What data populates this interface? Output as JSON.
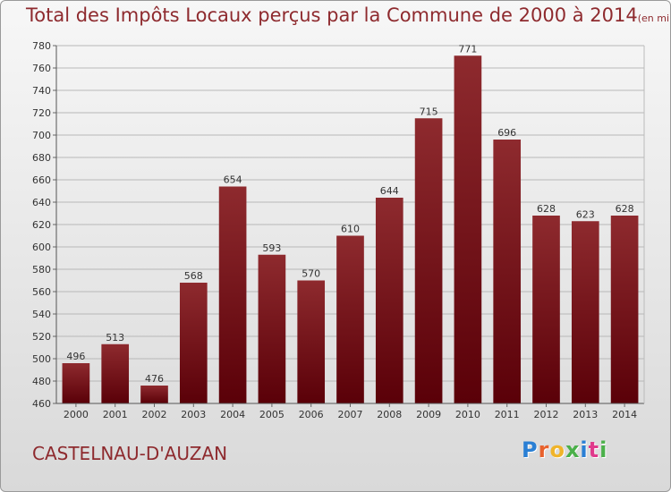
{
  "header": {
    "title": "Total des Impôts Locaux perçus par la Commune de 2000 à 2014",
    "subtitle": "(en milliers d'€)"
  },
  "commune_name": "CASTELNAU-D'AUZAN",
  "logo": {
    "text": "Proxiti",
    "colors": [
      "#2a7fd4",
      "#e8612c",
      "#f0b42a",
      "#4bb04a",
      "#2a7fd4",
      "#e03a8c",
      "#4bb04a"
    ]
  },
  "colors": {
    "bar_top": "#8e2a2e",
    "bar_bottom": "#5a0008",
    "grid": "#b8b8b8",
    "title": "#8e2a2e"
  },
  "chart_data": {
    "type": "bar",
    "title": "Total des Impôts Locaux perçus par la Commune de 2000 à 2014",
    "subtitle": "(en milliers d'€)",
    "xlabel": "",
    "ylabel": "",
    "categories": [
      "2000",
      "2001",
      "2002",
      "2003",
      "2004",
      "2005",
      "2006",
      "2007",
      "2008",
      "2009",
      "2010",
      "2011",
      "2012",
      "2013",
      "2014"
    ],
    "values": [
      496,
      513,
      476,
      568,
      654,
      593,
      570,
      610,
      644,
      715,
      771,
      696,
      628,
      623,
      628
    ],
    "ylim": [
      460,
      780
    ],
    "yticks": [
      460,
      480,
      500,
      520,
      540,
      560,
      580,
      600,
      620,
      640,
      660,
      680,
      700,
      720,
      740,
      760,
      780
    ],
    "grid": true,
    "legend": "none"
  }
}
